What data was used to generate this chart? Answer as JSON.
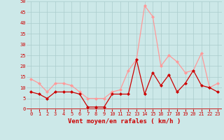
{
  "x": [
    0,
    1,
    2,
    3,
    4,
    5,
    6,
    7,
    8,
    9,
    10,
    11,
    12,
    13,
    14,
    15,
    16,
    17,
    18,
    19,
    20,
    21,
    22,
    23
  ],
  "y_rafales": [
    14,
    12,
    8,
    12,
    12,
    11,
    8,
    5,
    5,
    5,
    8,
    9,
    18,
    23,
    48,
    43,
    20,
    25,
    22,
    17,
    18,
    26,
    10,
    12
  ],
  "y_moyen": [
    8,
    7,
    5,
    8,
    8,
    8,
    7,
    1,
    1,
    1,
    7,
    7,
    7,
    23,
    7,
    17,
    11,
    16,
    8,
    12,
    18,
    11,
    10,
    8
  ],
  "bg_color": "#cce8e8",
  "grid_color": "#aacccc",
  "line_color_rafales": "#ff9999",
  "line_color_moyen": "#cc0000",
  "xlabel": "Vent moyen/en rafales ( km/h )",
  "ylim": [
    0,
    50
  ],
  "yticks": [
    0,
    5,
    10,
    15,
    20,
    25,
    30,
    35,
    40,
    45,
    50
  ],
  "xlim": [
    -0.5,
    23.5
  ],
  "tick_fontsize": 5,
  "xlabel_fontsize": 6.5
}
